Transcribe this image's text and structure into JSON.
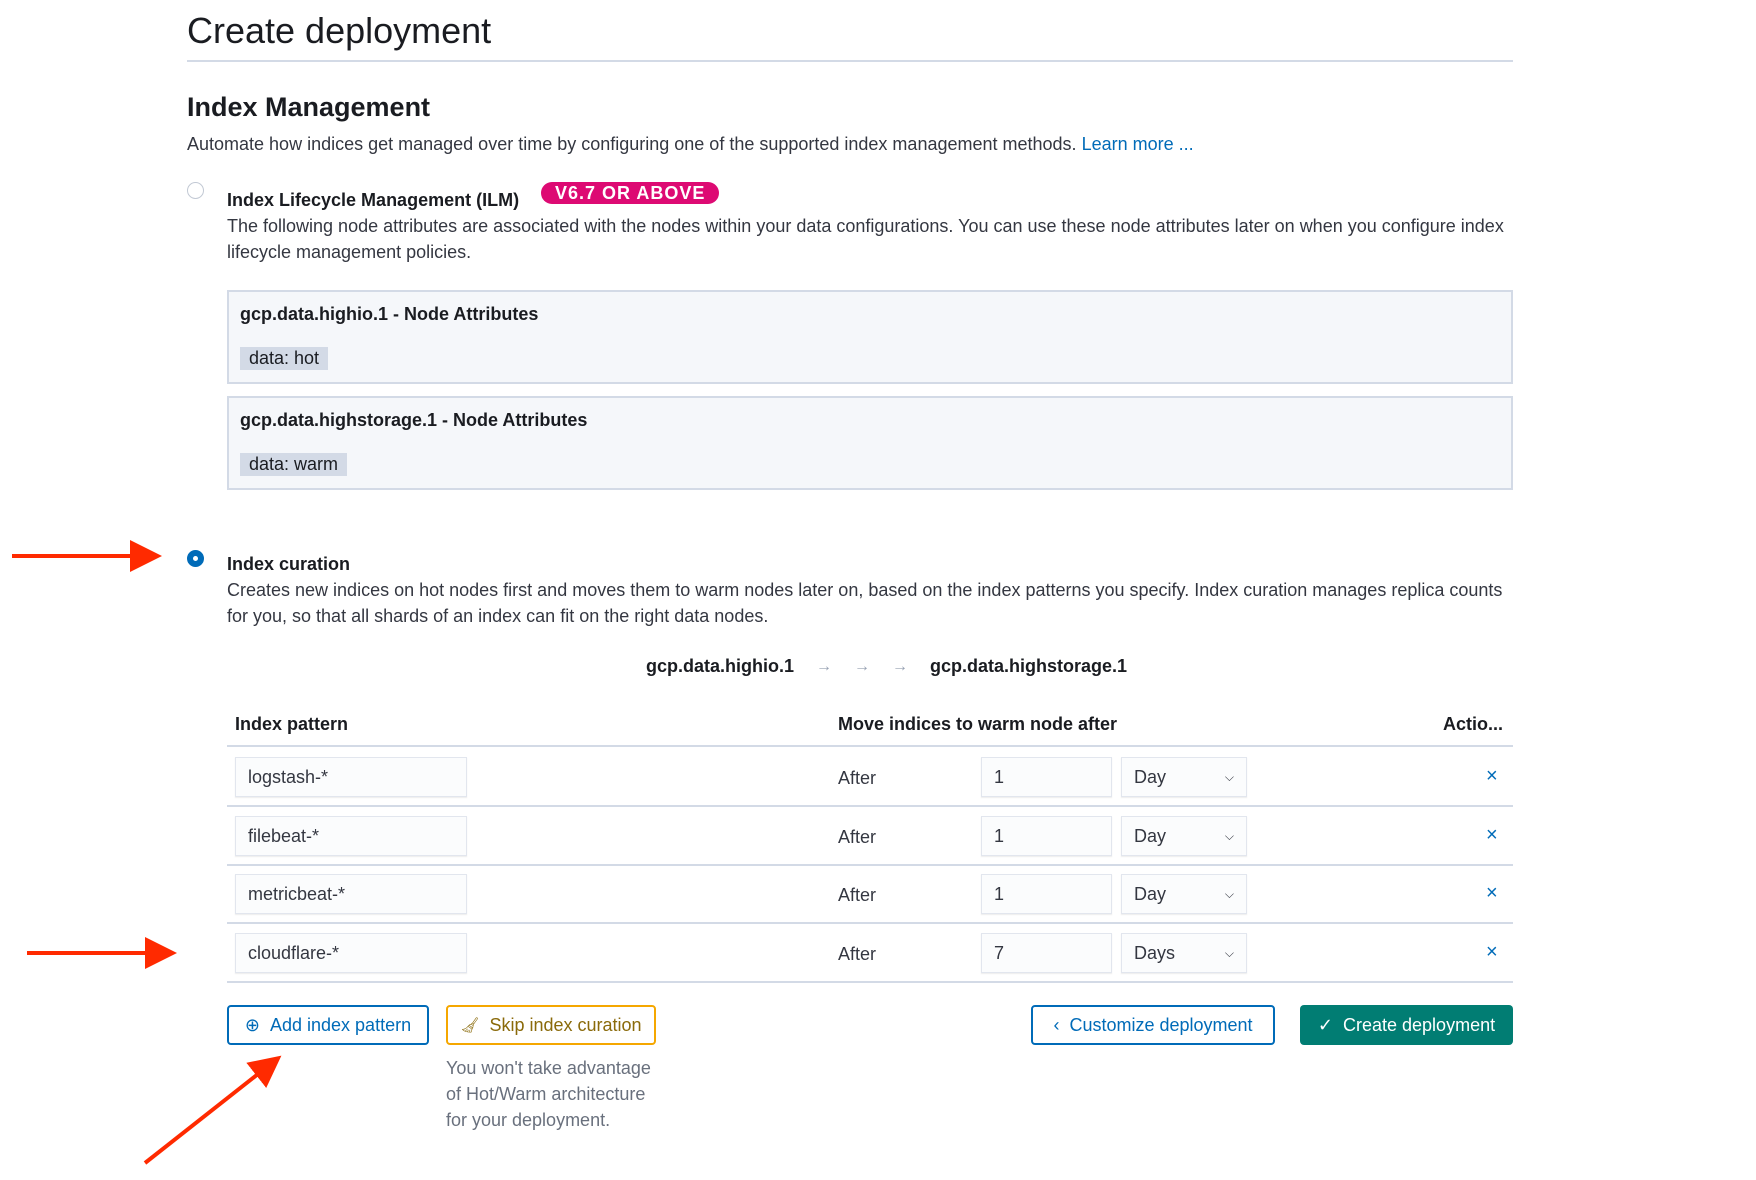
{
  "page": {
    "title": "Create deployment"
  },
  "index_management": {
    "title": "Index Management",
    "description": "Automate how indices get managed over time by configuring one of the supported index management methods.",
    "learn_more": "Learn more ..."
  },
  "ilm": {
    "selected": false,
    "title": "Index Lifecycle Management (ILM)",
    "badge": "V6.7 OR ABOVE",
    "badge_color": "#dd0a73",
    "description": "The following node attributes are associated with the nodes within your data configurations. You can use these node attributes later on when you configure index lifecycle management policies.",
    "nodes": [
      {
        "title": "gcp.data.highio.1 - Node Attributes",
        "tag": "data: hot"
      },
      {
        "title": "gcp.data.highstorage.1 - Node Attributes",
        "tag": "data: warm"
      }
    ]
  },
  "curation": {
    "selected": true,
    "title": "Index curation",
    "description": "Creates new indices on hot nodes first and moves them to warm nodes later on, based on the index patterns you specify. Index curation manages replica counts for you, so that all shards of an index can fit on the right data nodes.",
    "flow": {
      "from": "gcp.data.highio.1",
      "to": "gcp.data.highstorage.1"
    },
    "table": {
      "headers": [
        "Index pattern",
        "Move indices to warm node after",
        "Actio..."
      ],
      "rows": [
        {
          "pattern": "logstash-*",
          "after": "After",
          "value": "1",
          "unit": "Day"
        },
        {
          "pattern": "filebeat-*",
          "after": "After",
          "value": "1",
          "unit": "Day"
        },
        {
          "pattern": "metricbeat-*",
          "after": "After",
          "value": "1",
          "unit": "Day"
        },
        {
          "pattern": "cloudflare-*",
          "after": "After",
          "value": "7",
          "unit": "Days"
        }
      ]
    }
  },
  "buttons": {
    "add": "Add index pattern",
    "skip": "Skip index curation",
    "skip_help": "You won't take advantage of Hot/Warm architecture for your deployment.",
    "customize": "Customize deployment",
    "create": "Create deployment"
  },
  "colors": {
    "primary": "#006bb8",
    "success": "#017d73",
    "warning": "#f5a700",
    "annotation": "#ff2a00"
  }
}
